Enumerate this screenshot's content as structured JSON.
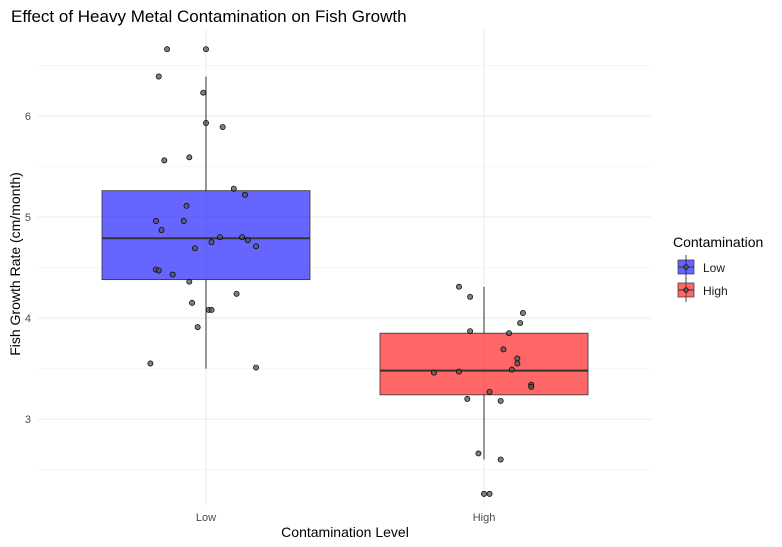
{
  "chart_data": {
    "type": "boxplot",
    "title": "Effect of Heavy Metal Contamination on Fish Growth",
    "xlabel": "Contamination Level",
    "ylabel": "Fish Growth Rate (cm/month)",
    "categories": [
      "Low",
      "High"
    ],
    "ylim": [
      2.15,
      6.85
    ],
    "yticks": [
      3,
      4,
      5,
      6
    ],
    "legend": {
      "title": "Contamination",
      "position": "right",
      "entries": [
        {
          "label": "Low",
          "color": "#0000ff"
        },
        {
          "label": "High",
          "color": "#ff0000"
        }
      ]
    },
    "boxes": [
      {
        "category": "Low",
        "whisker_low": 3.5,
        "q1": 4.38,
        "median": 4.79,
        "q3": 5.26,
        "whisker_high": 6.39,
        "color": "#0000ff",
        "opacity": 0.6
      },
      {
        "category": "High",
        "whisker_low": 2.6,
        "q1": 3.24,
        "median": 3.48,
        "q3": 3.85,
        "whisker_high": 4.31,
        "color": "#ff0000",
        "opacity": 0.6
      }
    ],
    "points": [
      {
        "category": "Low",
        "jitter": -0.14,
        "value": 6.66
      },
      {
        "category": "Low",
        "jitter": 0.0,
        "value": 6.66
      },
      {
        "category": "Low",
        "jitter": -0.17,
        "value": 6.39
      },
      {
        "category": "Low",
        "jitter": -0.01,
        "value": 6.23
      },
      {
        "category": "Low",
        "jitter": 0.0,
        "value": 5.93
      },
      {
        "category": "Low",
        "jitter": 0.06,
        "value": 5.89
      },
      {
        "category": "Low",
        "jitter": -0.06,
        "value": 5.59
      },
      {
        "category": "Low",
        "jitter": -0.15,
        "value": 5.56
      },
      {
        "category": "Low",
        "jitter": 0.1,
        "value": 5.28
      },
      {
        "category": "Low",
        "jitter": 0.14,
        "value": 5.22
      },
      {
        "category": "Low",
        "jitter": -0.07,
        "value": 5.11
      },
      {
        "category": "Low",
        "jitter": -0.18,
        "value": 4.96
      },
      {
        "category": "Low",
        "jitter": -0.08,
        "value": 4.96
      },
      {
        "category": "Low",
        "jitter": -0.16,
        "value": 4.87
      },
      {
        "category": "Low",
        "jitter": 0.05,
        "value": 4.8
      },
      {
        "category": "Low",
        "jitter": 0.13,
        "value": 4.8
      },
      {
        "category": "Low",
        "jitter": 0.15,
        "value": 4.77
      },
      {
        "category": "Low",
        "jitter": 0.02,
        "value": 4.75
      },
      {
        "category": "Low",
        "jitter": 0.18,
        "value": 4.71
      },
      {
        "category": "Low",
        "jitter": -0.04,
        "value": 4.69
      },
      {
        "category": "Low",
        "jitter": -0.18,
        "value": 4.48
      },
      {
        "category": "Low",
        "jitter": -0.17,
        "value": 4.47
      },
      {
        "category": "Low",
        "jitter": -0.12,
        "value": 4.43
      },
      {
        "category": "Low",
        "jitter": -0.06,
        "value": 4.36
      },
      {
        "category": "Low",
        "jitter": 0.11,
        "value": 4.24
      },
      {
        "category": "Low",
        "jitter": -0.05,
        "value": 4.15
      },
      {
        "category": "Low",
        "jitter": 0.01,
        "value": 4.08
      },
      {
        "category": "Low",
        "jitter": 0.02,
        "value": 4.08
      },
      {
        "category": "Low",
        "jitter": -0.03,
        "value": 3.91
      },
      {
        "category": "Low",
        "jitter": -0.2,
        "value": 3.55
      },
      {
        "category": "Low",
        "jitter": 0.18,
        "value": 3.51
      },
      {
        "category": "High",
        "jitter": -0.09,
        "value": 4.31
      },
      {
        "category": "High",
        "jitter": -0.05,
        "value": 4.21
      },
      {
        "category": "High",
        "jitter": 0.14,
        "value": 4.05
      },
      {
        "category": "High",
        "jitter": 0.13,
        "value": 3.95
      },
      {
        "category": "High",
        "jitter": -0.05,
        "value": 3.87
      },
      {
        "category": "High",
        "jitter": 0.09,
        "value": 3.85
      },
      {
        "category": "High",
        "jitter": 0.07,
        "value": 3.69
      },
      {
        "category": "High",
        "jitter": 0.12,
        "value": 3.6
      },
      {
        "category": "High",
        "jitter": 0.12,
        "value": 3.55
      },
      {
        "category": "High",
        "jitter": 0.1,
        "value": 3.49
      },
      {
        "category": "High",
        "jitter": -0.09,
        "value": 3.47
      },
      {
        "category": "High",
        "jitter": -0.18,
        "value": 3.46
      },
      {
        "category": "High",
        "jitter": 0.17,
        "value": 3.34
      },
      {
        "category": "High",
        "jitter": 0.17,
        "value": 3.32
      },
      {
        "category": "High",
        "jitter": 0.02,
        "value": 3.27
      },
      {
        "category": "High",
        "jitter": -0.06,
        "value": 3.2
      },
      {
        "category": "High",
        "jitter": 0.06,
        "value": 3.18
      },
      {
        "category": "High",
        "jitter": -0.02,
        "value": 2.66
      },
      {
        "category": "High",
        "jitter": 0.06,
        "value": 2.6
      },
      {
        "category": "High",
        "jitter": 0.0,
        "value": 2.26
      },
      {
        "category": "High",
        "jitter": 0.02,
        "value": 2.26
      }
    ]
  }
}
